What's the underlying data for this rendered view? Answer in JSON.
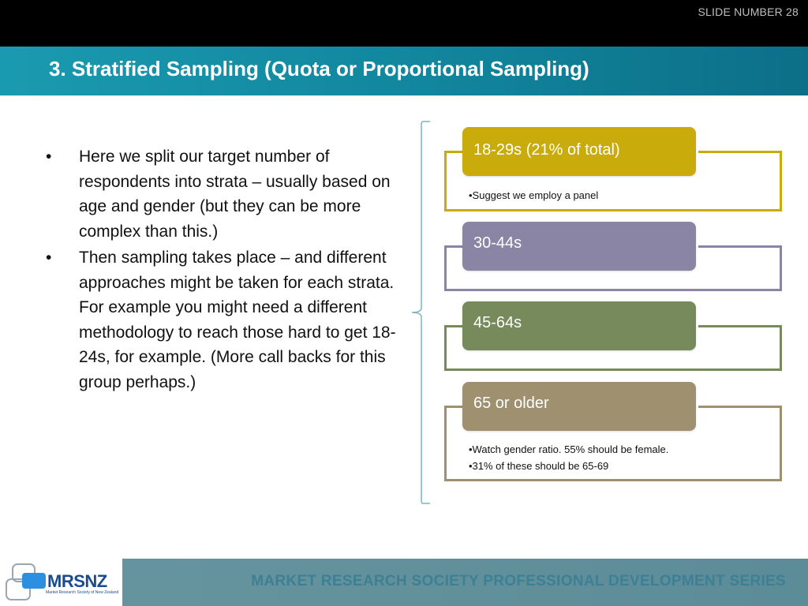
{
  "slide_number": "SLIDE NUMBER 28",
  "title": "3. Stratified Sampling (Quota or Proportional Sampling)",
  "bullets": [
    "Here we split our target number of respondents into strata – usually based on age and gender (but they can be more complex than this.)",
    "Then sampling takes place – and different approaches might be taken for each strata. For example you might need a different methodology to reach those hard to get 18-24s, for example. (More call backs for this group perhaps.)"
  ],
  "bullet_glyph": "•",
  "strata": [
    {
      "label": "18-29s (21% of total)",
      "color": "#c9ac0c",
      "notes": [
        "•Suggest we employ a panel"
      ]
    },
    {
      "label": "30-44s",
      "color": "#8b85a5",
      "notes": []
    },
    {
      "label": "45-64s",
      "color": "#768a5c",
      "notes": []
    },
    {
      "label": "65 or older",
      "color": "#9f9070",
      "notes": [
        "•Watch gender ratio. 55% should be female.",
        "•31% of these should be 65-69"
      ]
    }
  ],
  "footer": {
    "series": "MARKET RESEARCH SOCIETY PROFESSIONAL DEVELOPMENT SERIES",
    "logo_text": "MRSNZ",
    "logo_subtext": "Market Research Society of New Zealand"
  },
  "colors": {
    "accent_teal": "#1a9ab0",
    "brace": "#7fb3c2"
  }
}
